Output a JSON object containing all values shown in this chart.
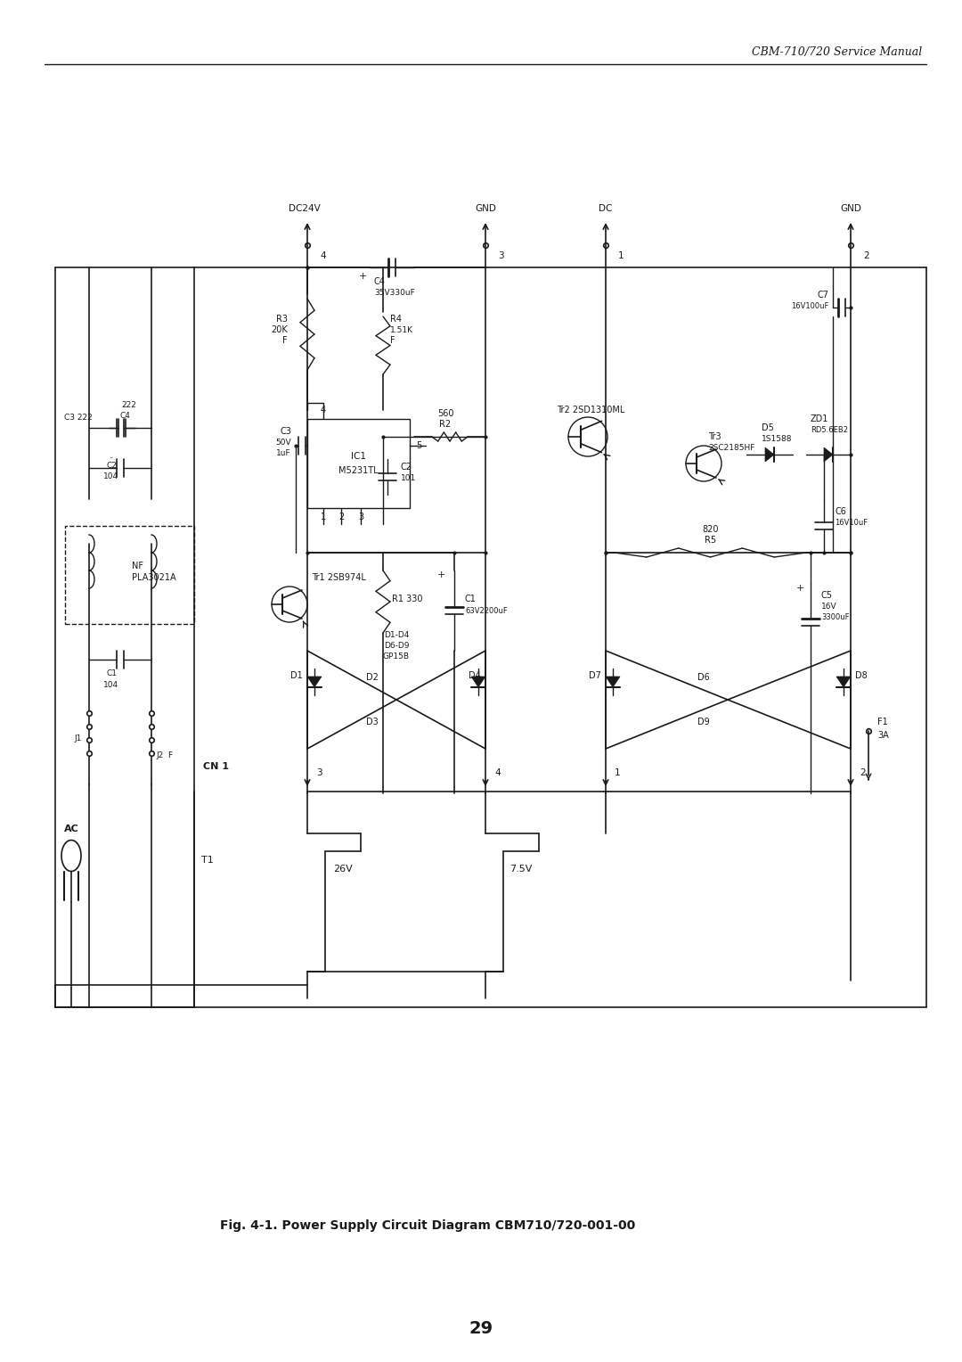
{
  "header_text": "CBM-710/720 Service Manual",
  "caption": "Fig. 4-1. Power Supply Circuit Diagram CBM710/720-001-00",
  "page_number": "29",
  "bg_color": "#ffffff",
  "line_color": "#1a1a1a",
  "fig_width": 10.8,
  "fig_height": 15.28
}
